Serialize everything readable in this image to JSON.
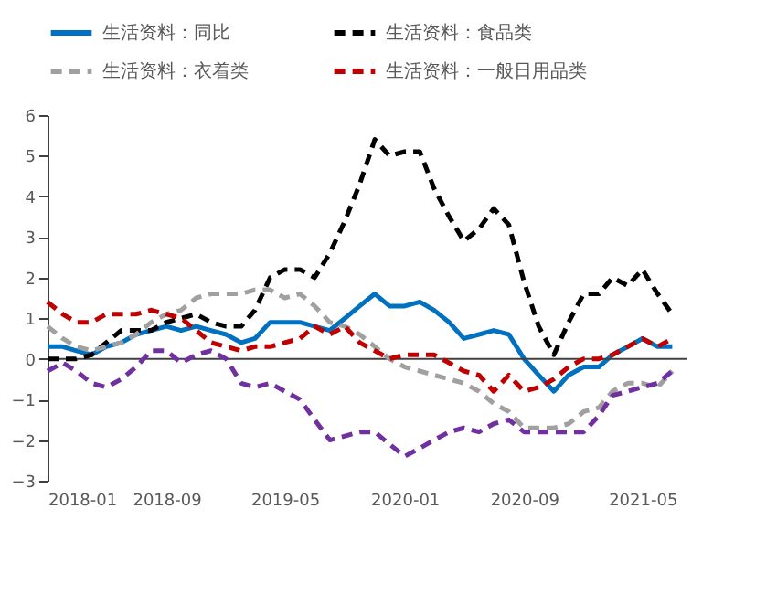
{
  "chart_data": {
    "type": "line",
    "x": [
      "2018-01",
      "2018-02",
      "2018-03",
      "2018-04",
      "2018-05",
      "2018-06",
      "2018-07",
      "2018-08",
      "2018-09",
      "2018-10",
      "2018-11",
      "2018-12",
      "2019-01",
      "2019-02",
      "2019-03",
      "2019-04",
      "2019-05",
      "2019-06",
      "2019-07",
      "2019-08",
      "2019-09",
      "2019-10",
      "2019-11",
      "2019-12",
      "2020-01",
      "2020-02",
      "2020-03",
      "2020-04",
      "2020-05",
      "2020-06",
      "2020-07",
      "2020-08",
      "2020-09",
      "2020-10",
      "2020-11",
      "2020-12",
      "2021-01",
      "2021-02",
      "2021-03",
      "2021-04",
      "2021-05",
      "2021-06",
      "2021-07"
    ],
    "series": [
      {
        "name": "生活资料：同比",
        "color": "#0070c0",
        "line_style": "solid",
        "values": [
          0.3,
          0.3,
          0.2,
          0.1,
          0.3,
          0.4,
          0.6,
          0.7,
          0.8,
          0.7,
          0.8,
          0.7,
          0.6,
          0.4,
          0.5,
          0.9,
          0.9,
          0.9,
          0.8,
          0.7,
          1.0,
          1.3,
          1.6,
          1.3,
          1.3,
          1.4,
          1.2,
          0.9,
          0.5,
          0.6,
          0.7,
          0.6,
          0.0,
          -0.4,
          -0.8,
          -0.4,
          -0.2,
          -0.2,
          0.1,
          0.3,
          0.5,
          0.3,
          0.3
        ]
      },
      {
        "name": "生活资料：食品类",
        "color": "#000000",
        "line_style": "dashed",
        "values": [
          0.0,
          0.0,
          0.0,
          0.1,
          0.4,
          0.7,
          0.7,
          0.7,
          0.9,
          1.0,
          1.1,
          0.9,
          0.8,
          0.8,
          1.2,
          2.0,
          2.2,
          2.2,
          2.0,
          2.6,
          3.4,
          4.3,
          5.4,
          5.0,
          5.1,
          5.1,
          4.2,
          3.5,
          2.9,
          3.2,
          3.7,
          3.3,
          1.9,
          0.8,
          0.1,
          0.9,
          1.6,
          1.6,
          2.0,
          1.8,
          2.2,
          1.6,
          1.1
        ]
      },
      {
        "name": "生活资料：衣着类",
        "color": "#a0a0a0",
        "line_style": "dashed",
        "values": [
          0.8,
          0.5,
          0.3,
          0.2,
          0.3,
          0.4,
          0.6,
          0.9,
          1.1,
          1.2,
          1.5,
          1.6,
          1.6,
          1.6,
          1.7,
          1.7,
          1.5,
          1.6,
          1.3,
          0.9,
          0.8,
          0.6,
          0.3,
          0.0,
          -0.2,
          -0.3,
          -0.4,
          -0.5,
          -0.6,
          -0.8,
          -1.1,
          -1.3,
          -1.7,
          -1.7,
          -1.7,
          -1.6,
          -1.3,
          -1.2,
          -0.8,
          -0.6,
          -0.6,
          -0.7,
          -0.3
        ]
      },
      {
        "name": "生活资料：一般日用品类",
        "color": "#c00000",
        "line_style": "dashed",
        "values": [
          1.4,
          1.1,
          0.9,
          0.9,
          1.1,
          1.1,
          1.1,
          1.2,
          1.1,
          1.0,
          0.7,
          0.4,
          0.3,
          0.2,
          0.3,
          0.3,
          0.4,
          0.5,
          0.8,
          0.6,
          0.8,
          0.4,
          0.2,
          0.0,
          0.1,
          0.1,
          0.1,
          -0.1,
          -0.3,
          -0.4,
          -0.8,
          -0.4,
          -0.8,
          -0.7,
          -0.5,
          -0.2,
          0.0,
          0.0,
          0.1,
          0.3,
          0.5,
          0.3,
          0.5
        ]
      },
      {
        "color": "#7030a0",
        "line_style": "dashed",
        "values": [
          -0.3,
          -0.1,
          -0.3,
          -0.6,
          -0.7,
          -0.5,
          -0.2,
          0.2,
          0.2,
          -0.1,
          0.1,
          0.2,
          0.0,
          -0.6,
          -0.7,
          -0.6,
          -0.8,
          -1.0,
          -1.5,
          -2.0,
          -1.9,
          -1.8,
          -1.8,
          -2.1,
          -2.4,
          -2.2,
          -2.0,
          -1.8,
          -1.7,
          -1.8,
          -1.6,
          -1.5,
          -1.8,
          -1.8,
          -1.8,
          -1.8,
          -1.8,
          -1.4,
          -0.9,
          -0.8,
          -0.7,
          -0.6,
          -0.3
        ]
      }
    ],
    "xlim": [
      "2018-01",
      "2021-08"
    ],
    "xticks": [
      "2018-01",
      "2018-09",
      "2019-05",
      "2020-01",
      "2020-09",
      "2021-05"
    ],
    "ylim": [
      -3,
      6
    ],
    "yticks": [
      -3,
      -2,
      -1,
      0,
      1,
      2,
      3,
      4,
      5,
      6
    ],
    "ref_lines": [
      {
        "axis": "y",
        "value": 0,
        "color": "#404040"
      }
    ],
    "grid": false,
    "legend": "top",
    "marker": "none"
  }
}
